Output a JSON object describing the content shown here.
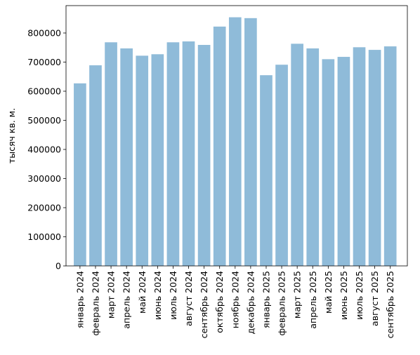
{
  "chart_data": {
    "type": "bar",
    "title": "",
    "xlabel": "",
    "ylabel": "тысяч кв. м.",
    "categories": [
      "январь 2024",
      "февраль 2024",
      "март 2024",
      "апрель 2024",
      "май 2024",
      "июнь 2024",
      "июль 2024",
      "август 2024",
      "сентябрь 2024",
      "октябрь 2024",
      "ноябрь 2024",
      "декабрь 2024",
      "январь 2025",
      "февраль 2025",
      "март 2025",
      "апрель 2025",
      "май 2025",
      "июнь 2025",
      "июль 2025",
      "август 2025",
      "сентябрь 2025"
    ],
    "values": [
      627000,
      689000,
      768000,
      747000,
      722000,
      727000,
      768000,
      771000,
      759000,
      822000,
      854000,
      851000,
      655000,
      691000,
      763000,
      747000,
      710000,
      718000,
      751000,
      742000,
      754000
    ],
    "ylim": [
      0,
      894000
    ],
    "yticks": [
      0,
      100000,
      200000,
      300000,
      400000,
      500000,
      600000,
      700000,
      800000
    ],
    "grid": false,
    "bar_color": "#8fbbd9"
  }
}
